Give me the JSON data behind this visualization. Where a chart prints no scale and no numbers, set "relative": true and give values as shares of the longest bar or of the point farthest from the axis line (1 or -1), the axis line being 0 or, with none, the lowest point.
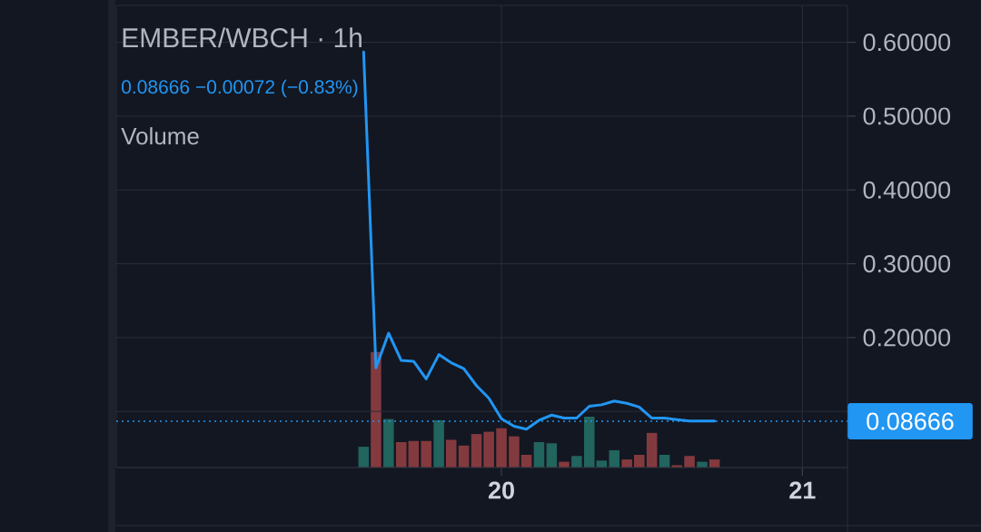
{
  "chart_data": [
    {
      "type": "line",
      "title": "EMBER/WBCH · 1h",
      "subtitle": "0.08666 −0.00072 (−0.83%)",
      "x": [
        19.542,
        19.583,
        19.625,
        19.667,
        19.708,
        19.75,
        19.792,
        19.833,
        19.875,
        19.917,
        19.958,
        20,
        20.042,
        20.083,
        20.125,
        20.167,
        20.208,
        20.25,
        20.292,
        20.333,
        20.375,
        20.417,
        20.458,
        20.5,
        20.542,
        20.583,
        20.625,
        20.667,
        20.708
      ],
      "values": [
        0.587,
        0.159,
        0.206,
        0.169,
        0.168,
        0.144,
        0.177,
        0.166,
        0.158,
        0.135,
        0.118,
        0.09,
        0.08,
        0.076,
        0.088,
        0.095,
        0.091,
        0.091,
        0.107,
        0.109,
        0.114,
        0.111,
        0.106,
        0.091,
        0.091,
        0.089,
        0.087,
        0.087,
        0.087
      ],
      "color": "#2196f3",
      "line_style": "solid",
      "xlim": [
        18.72,
        21.15
      ],
      "ylim": [
        0.024,
        0.65
      ],
      "yticks": [
        {
          "value": 0.1,
          "label": null
        },
        {
          "value": 0.2,
          "label": "0.20000"
        },
        {
          "value": 0.3,
          "label": "0.30000"
        },
        {
          "value": 0.4,
          "label": "0.40000"
        },
        {
          "value": 0.5,
          "label": "0.50000"
        },
        {
          "value": 0.6,
          "label": "0.60000"
        }
      ],
      "ref_lines": [
        {
          "axis": "y",
          "value": 0.08666,
          "label": "0.08666",
          "color": "#2196f3",
          "line_style": "dotted"
        }
      ],
      "grid": "y",
      "tick_labels": "y"
    },
    {
      "type": "bar",
      "title": "Volume",
      "x": [
        19.542,
        19.583,
        19.625,
        19.667,
        19.708,
        19.75,
        19.792,
        19.833,
        19.875,
        19.917,
        19.958,
        20,
        20.042,
        20.083,
        20.125,
        20.167,
        20.208,
        20.25,
        20.292,
        20.333,
        20.375,
        20.417,
        20.458,
        20.5,
        20.542,
        20.583,
        20.625,
        20.667,
        20.708
      ],
      "values": [
        0.18,
        1.0,
        0.42,
        0.22,
        0.23,
        0.23,
        0.41,
        0.24,
        0.19,
        0.29,
        0.31,
        0.34,
        0.27,
        0.11,
        0.22,
        0.21,
        0.05,
        0.1,
        0.44,
        0.06,
        0.15,
        0.07,
        0.11,
        0.3,
        0.11,
        0.02,
        0.1,
        0.05,
        0.07
      ],
      "colors": [
        "#22645e",
        "#833a3e",
        "#22645e",
        "#833a3e",
        "#833a3e",
        "#833a3e",
        "#22645e",
        "#833a3e",
        "#833a3e",
        "#833a3e",
        "#833a3e",
        "#833a3e",
        "#833a3e",
        "#833a3e",
        "#22645e",
        "#22645e",
        "#833a3e",
        "#22645e",
        "#22645e",
        "#22645e",
        "#22645e",
        "#833a3e",
        "#833a3e",
        "#833a3e",
        "#22645e",
        "#833a3e",
        "#833a3e",
        "#22645e",
        "#833a3e"
      ],
      "relative": true,
      "xlim": [
        18.72,
        21.15
      ],
      "xticks": [
        20,
        21
      ],
      "grid": "x"
    }
  ]
}
